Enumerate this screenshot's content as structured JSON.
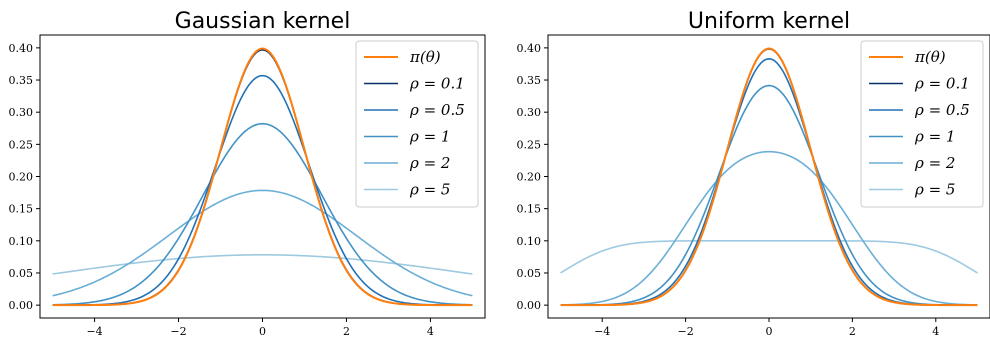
{
  "chart_data": [
    {
      "type": "line",
      "title": "Gaussian kernel",
      "kernel": "gaussian",
      "xlabel": "",
      "ylabel": "",
      "xlim": [
        -5.3,
        5.3
      ],
      "ylim": [
        -0.02,
        0.42
      ],
      "xticks": [
        -4,
        -2,
        0,
        2,
        4
      ],
      "xtick_labels": [
        "−4",
        "−2",
        "0",
        "2",
        "4"
      ],
      "yticks": [
        0,
        0.05,
        0.1,
        0.15,
        0.2,
        0.25,
        0.3,
        0.35,
        0.4
      ],
      "ytick_labels": [
        "0.00",
        "0.05",
        "0.10",
        "0.15",
        "0.20",
        "0.25",
        "0.30",
        "0.35",
        "0.40"
      ],
      "x_range": [
        -5,
        5
      ],
      "grid": false,
      "legend_position": "top-right",
      "series": [
        {
          "name": "π(θ)",
          "rho": 0,
          "color": "#ff7f0e",
          "width": 2.0
        },
        {
          "name": "ρ = 0.1",
          "rho": 0.1,
          "color": "#08306b",
          "width": 1.6
        },
        {
          "name": "ρ = 0.5",
          "rho": 0.5,
          "color": "#2171b5",
          "width": 1.6
        },
        {
          "name": "ρ = 1",
          "rho": 1,
          "color": "#4292c6",
          "width": 1.6
        },
        {
          "name": "ρ = 2",
          "rho": 2,
          "color": "#6baed6",
          "width": 1.6
        },
        {
          "name": "ρ = 5",
          "rho": 5,
          "color": "#9ecae1",
          "width": 1.6
        }
      ]
    },
    {
      "type": "line",
      "title": "Uniform kernel",
      "kernel": "uniform",
      "xlabel": "",
      "ylabel": "",
      "xlim": [
        -5.3,
        5.3
      ],
      "ylim": [
        -0.02,
        0.42
      ],
      "xticks": [
        -4,
        -2,
        0,
        2,
        4
      ],
      "xtick_labels": [
        "−4",
        "−2",
        "0",
        "2",
        "4"
      ],
      "yticks": [
        0,
        0.05,
        0.1,
        0.15,
        0.2,
        0.25,
        0.3,
        0.35,
        0.4
      ],
      "ytick_labels": [
        "0.00",
        "0.05",
        "0.10",
        "0.15",
        "0.20",
        "0.25",
        "0.30",
        "0.35",
        "0.40"
      ],
      "x_range": [
        -5,
        5
      ],
      "grid": false,
      "legend_position": "top-right",
      "series": [
        {
          "name": "π(θ)",
          "rho": 0,
          "color": "#ff7f0e",
          "width": 2.0
        },
        {
          "name": "ρ = 0.1",
          "rho": 0.1,
          "color": "#08306b",
          "width": 1.6
        },
        {
          "name": "ρ = 0.5",
          "rho": 0.5,
          "color": "#2171b5",
          "width": 1.6
        },
        {
          "name": "ρ = 1",
          "rho": 1,
          "color": "#4292c6",
          "width": 1.6
        },
        {
          "name": "ρ = 2",
          "rho": 2,
          "color": "#6baed6",
          "width": 1.6
        },
        {
          "name": "ρ = 5",
          "rho": 5,
          "color": "#9ecae1",
          "width": 1.6
        }
      ]
    }
  ]
}
